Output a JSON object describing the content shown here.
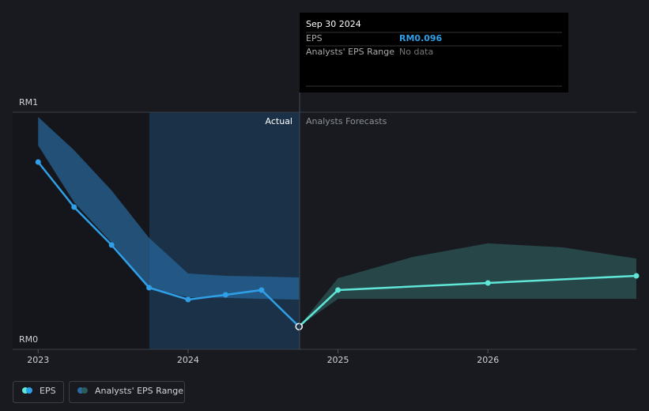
{
  "chart_data": {
    "type": "line",
    "xlim": [
      2022.83,
      2026.99
    ],
    "xticks": [
      2023,
      2024,
      2025,
      2026
    ],
    "ylim": [
      0,
      1
    ],
    "yticks": [
      {
        "value": 0,
        "label": "RM0"
      },
      {
        "value": 1,
        "label": "RM1"
      }
    ],
    "forecast_start": 2024.74,
    "actual_label": "Actual",
    "forecast_label": "Analysts Forecasts",
    "series": [
      {
        "name": "EPS",
        "color": "#2f9fe8",
        "forecast_color": "#5ee6d6",
        "x": [
          2023.0,
          2023.24,
          2023.49,
          2023.74,
          2024.0,
          2024.25,
          2024.49,
          2024.74,
          2025.0,
          2026.0,
          2026.99
        ],
        "values": [
          0.79,
          0.6,
          0.44,
          0.26,
          0.21,
          0.23,
          0.25,
          0.096,
          0.25,
          0.28,
          0.31
        ]
      }
    ],
    "range_legend": {
      "name": "Analysts' EPS Range",
      "color": "#2d5a5a"
    },
    "ranges": [
      {
        "color": "#2a6a9e",
        "x": [
          2023.0,
          2023.24,
          2023.49,
          2023.74,
          2024.0,
          2024.25,
          2024.49,
          2024.74
        ],
        "high": [
          0.98,
          0.84,
          0.67,
          0.47,
          0.32,
          0.31,
          0.307,
          0.303
        ],
        "low": [
          0.86,
          0.62,
          0.45,
          0.26,
          0.22,
          0.217,
          0.213,
          0.21
        ]
      },
      {
        "color": "#2d5a5a",
        "x": [
          2024.74,
          2025.0,
          2025.5,
          2026.0,
          2026.5,
          2026.99
        ],
        "high": [
          0.097,
          0.3,
          0.39,
          0.447,
          0.43,
          0.383
        ],
        "low": [
          0.097,
          0.213,
          0.213,
          0.213,
          0.213,
          0.213
        ]
      }
    ],
    "tooltip": {
      "date": "Sep 30 2024",
      "rows": [
        {
          "label": "EPS",
          "value": "RM0.096"
        },
        {
          "label": "Analysts' EPS Range",
          "value": "No data"
        }
      ]
    }
  }
}
